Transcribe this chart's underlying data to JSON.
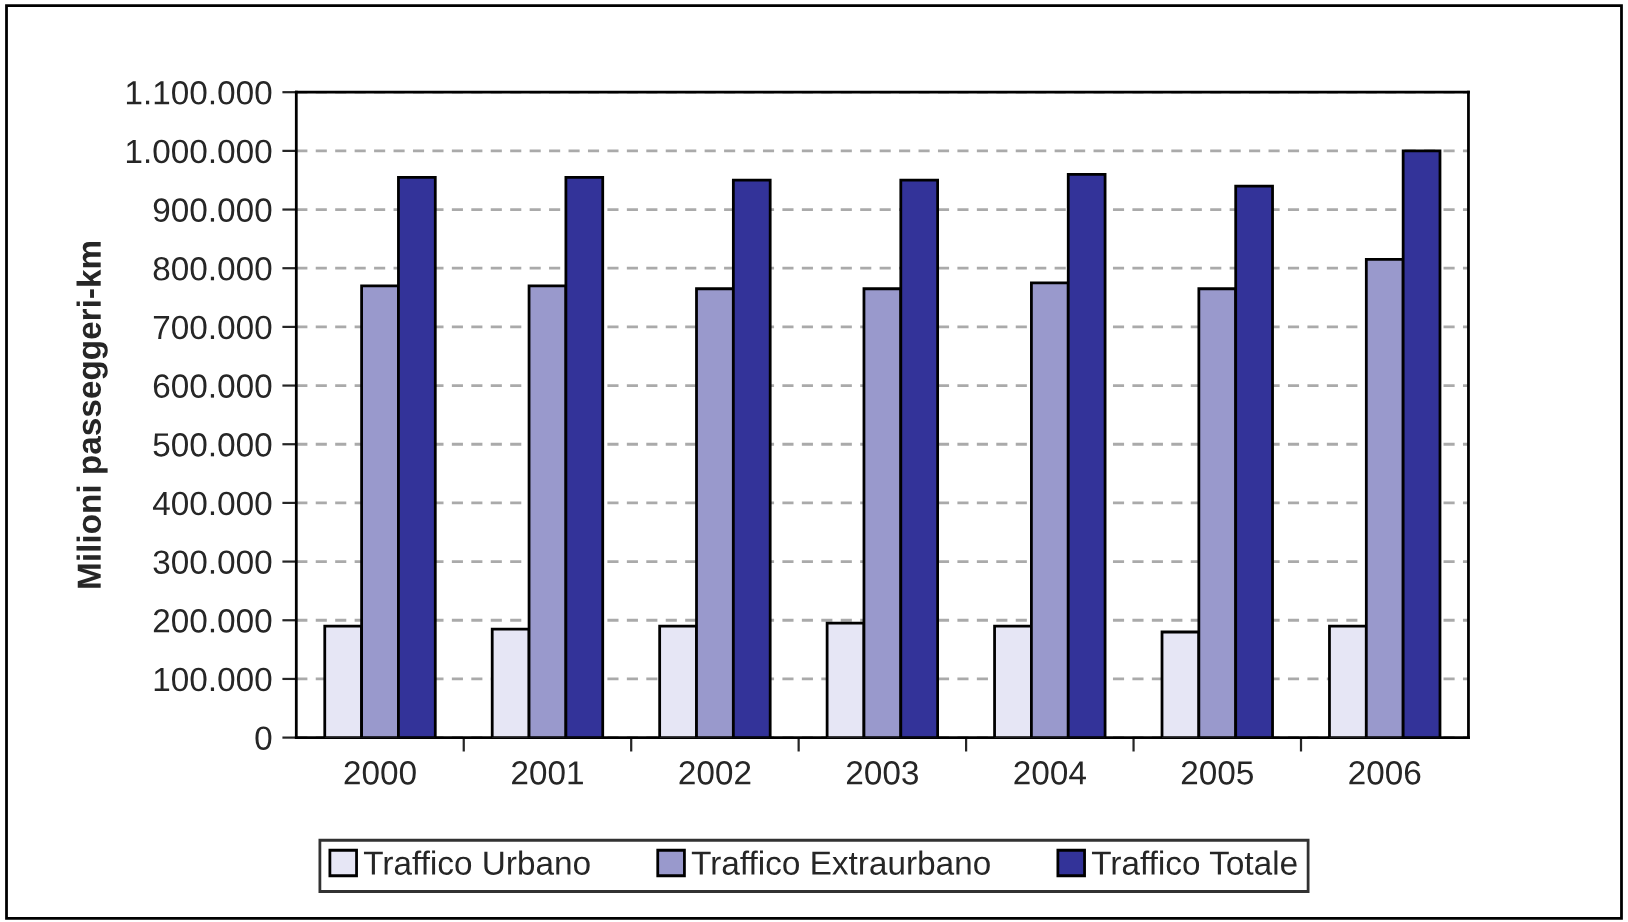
{
  "chart_data": {
    "type": "bar",
    "ylabel": "Milioni passeggeri-km",
    "categories": [
      "2000",
      "2001",
      "2002",
      "2003",
      "2004",
      "2005",
      "2006"
    ],
    "series": [
      {
        "name": "Traffico Urbano",
        "color": "#e6e6f5",
        "values": [
          190000,
          185000,
          190000,
          195000,
          190000,
          180000,
          190000
        ]
      },
      {
        "name": "Traffico Extraurbano",
        "color": "#9999cc",
        "values": [
          770000,
          770000,
          765000,
          765000,
          775000,
          765000,
          815000
        ]
      },
      {
        "name": "Traffico Totale",
        "color": "#333399",
        "values": [
          955000,
          955000,
          950000,
          950000,
          960000,
          940000,
          1000000
        ]
      }
    ],
    "ylim": [
      0,
      1100000
    ],
    "yticks": [
      {
        "value": 0,
        "label": "0"
      },
      {
        "value": 100000,
        "label": "100.000"
      },
      {
        "value": 200000,
        "label": "200.000"
      },
      {
        "value": 300000,
        "label": "300.000"
      },
      {
        "value": 400000,
        "label": "400.000"
      },
      {
        "value": 500000,
        "label": "500.000"
      },
      {
        "value": 600000,
        "label": "600.000"
      },
      {
        "value": 700000,
        "label": "700.000"
      },
      {
        "value": 800000,
        "label": "800.000"
      },
      {
        "value": 900000,
        "label": "900.000"
      },
      {
        "value": 1000000,
        "label": "1.000.000"
      },
      {
        "value": 1100000,
        "label": "1.100.000"
      }
    ],
    "grid": "y",
    "legend": "bottom"
  }
}
